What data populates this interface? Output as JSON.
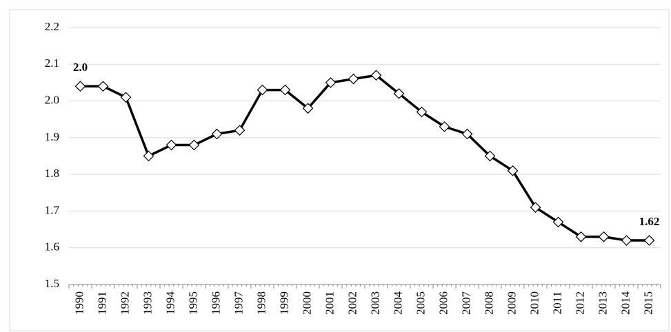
{
  "chart_data": {
    "type": "line",
    "categories": [
      "1990",
      "1991",
      "1992",
      "1993",
      "1994",
      "1995",
      "1996",
      "1997",
      "1998",
      "1999",
      "2000",
      "2001",
      "2002",
      "2003",
      "2004",
      "2005",
      "2006",
      "2007",
      "2008",
      "2009",
      "2010",
      "2011",
      "2012",
      "2013",
      "2014",
      "2015"
    ],
    "series": [
      {
        "color": "#000000",
        "values": [
          2.04,
          2.04,
          2.01,
          1.85,
          1.88,
          1.88,
          1.91,
          1.92,
          2.03,
          2.03,
          1.98,
          2.05,
          2.06,
          2.07,
          2.02,
          1.97,
          1.93,
          1.91,
          1.85,
          1.81,
          1.71,
          1.67,
          1.63,
          1.63,
          1.62,
          1.62
        ],
        "value_labels": [
          "2.0",
          null,
          null,
          null,
          null,
          null,
          null,
          null,
          null,
          null,
          null,
          null,
          null,
          null,
          null,
          null,
          null,
          null,
          null,
          null,
          null,
          null,
          null,
          null,
          null,
          "1.62"
        ]
      }
    ],
    "ylim": [
      1.5,
      2.2
    ],
    "yticks": [
      1.5,
      {
        "value": 1.6,
        "label": "1.6"
      },
      {
        "value": 1.7,
        "label": "1.7"
      },
      {
        "value": 1.8,
        "label": "1.8"
      },
      {
        "value": 1.9,
        "label": "1.9"
      },
      {
        "value": 2.0,
        "label": "2.0"
      },
      {
        "value": 2.1,
        "label": "2.1"
      },
      2.2
    ],
    "grid": true
  }
}
